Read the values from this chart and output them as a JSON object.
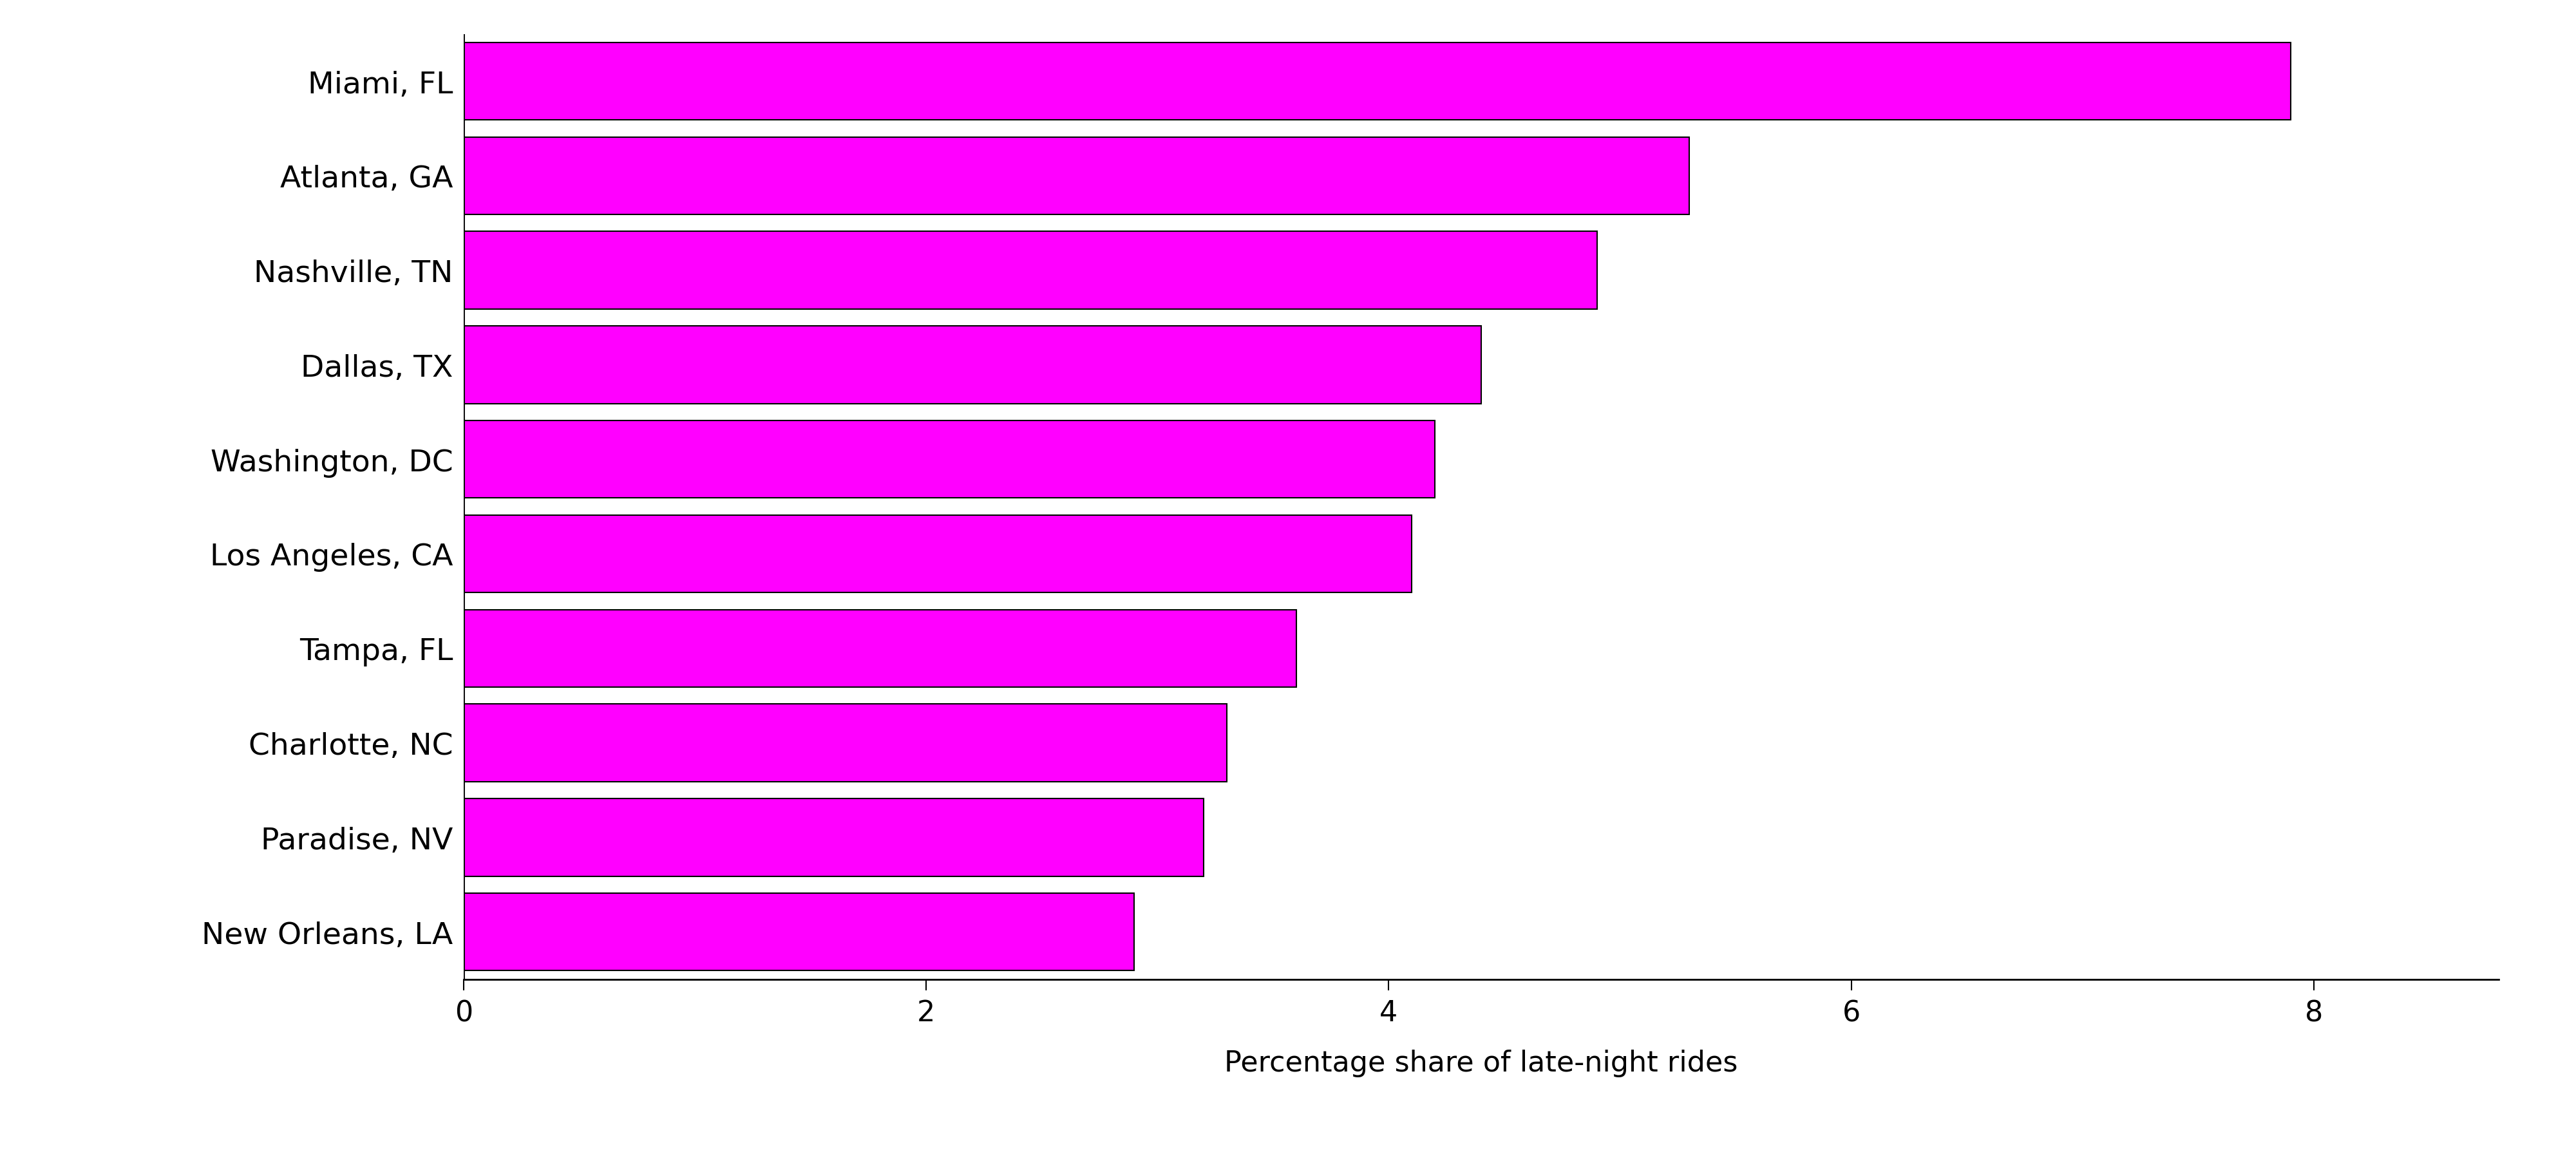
{
  "cities": [
    "Miami, FL",
    "Atlanta, GA",
    "Nashville, TN",
    "Dallas, TX",
    "Washington, DC",
    "Los Angeles, CA",
    "Tampa, FL",
    "Charlotte, NC",
    "Paradise, NV",
    "New Orleans, LA"
  ],
  "values": [
    7.9,
    5.3,
    4.9,
    4.4,
    4.2,
    4.1,
    3.6,
    3.3,
    3.2,
    2.9
  ],
  "bar_color": "#FF00FF",
  "bar_edgecolor": "#000000",
  "bar_linewidth": 1.5,
  "xlabel": "Percentage share of late-night rides",
  "xlim": [
    0,
    8.8
  ],
  "xticks": [
    0,
    2,
    4,
    6,
    8
  ],
  "xlabel_fontsize": 32,
  "ytick_fontsize": 34,
  "xtick_fontsize": 32,
  "background_color": "#FFFFFF",
  "bar_height": 0.82
}
